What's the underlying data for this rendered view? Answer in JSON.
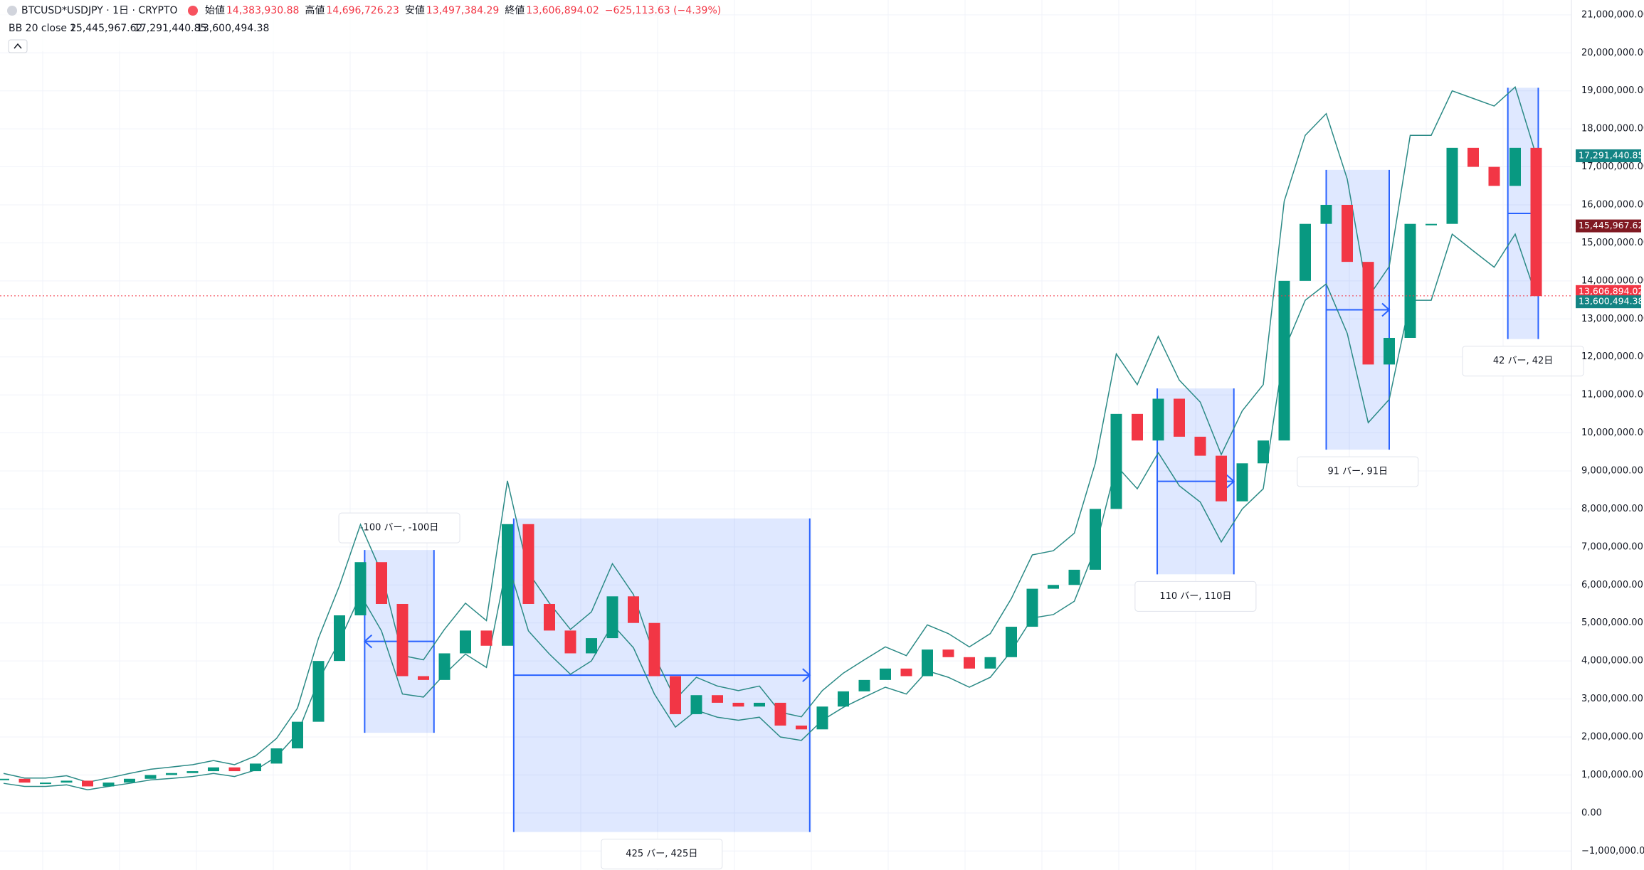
{
  "chart_data": {
    "type": "candlestick",
    "title": "BTCUSD*USDJPY · 1日 · CRYPTO",
    "ohlc_header": [
      {
        "name": "始値",
        "label": "14,383,930.88"
      },
      {
        "name": "高値",
        "label": "14,696,726.23"
      },
      {
        "name": "安値",
        "label": "13,497,384.29"
      },
      {
        "name": "終値",
        "label": "13,606,894.02"
      }
    ],
    "change": "−625,113.63 (−4.39%)",
    "close": {
      "value": 13606894.02,
      "label": "13,606,894.02",
      "color": "#f23645"
    },
    "indicator": {
      "name": "BB 20 close 2",
      "basis": {
        "value": 15445967.62,
        "label": "15,445,967.62",
        "color": "#801922"
      },
      "upper": {
        "value": 17291440.85,
        "label": "17,291,440.85",
        "color": "#138484"
      },
      "lower": {
        "value": 13600494.38,
        "label": "13,600,494.38",
        "color": "#138484"
      }
    },
    "series": [
      {
        "name": "close",
        "up_color": "#089981",
        "down_color": "#f23645",
        "values": [
          900000,
          800000,
          800000,
          850000,
          700000,
          800000,
          900000,
          1000000,
          1050000,
          1100000,
          1200000,
          1100000,
          1300000,
          1700000,
          2400000,
          4000000,
          5200000,
          6600000,
          5500000,
          3600000,
          3500000,
          4200000,
          4800000,
          4400000,
          7600000,
          5500000,
          4800000,
          4200000,
          4600000,
          5700000,
          5000000,
          3600000,
          2600000,
          3100000,
          2900000,
          2800000,
          2900000,
          2300000,
          2200000,
          2800000,
          3200000,
          3500000,
          3800000,
          3600000,
          4300000,
          4100000,
          3800000,
          4100000,
          4900000,
          5900000,
          6000000,
          6400000,
          8000000,
          10500000,
          9800000,
          10900000,
          9900000,
          9400000,
          8200000,
          9200000,
          9800000,
          14000000,
          15500000,
          16000000,
          14500000,
          11800000,
          12500000,
          15500000,
          15500000,
          17500000,
          17000000,
          16500000,
          17500000,
          13600000
        ]
      },
      {
        "name": "upper",
        "color": "#2b8a86",
        "values": [
          1040000,
          920000,
          920000,
          980000,
          810000,
          920000,
          1040000,
          1150000,
          1210000,
          1270000,
          1380000,
          1270000,
          1500000,
          1960000,
          2760000,
          4600000,
          5980000,
          7590000,
          6330000,
          4140000,
          4030000,
          4830000,
          5520000,
          5060000,
          8740000,
          6330000,
          5520000,
          4830000,
          5290000,
          6560000,
          5750000,
          4140000,
          2990000,
          3570000,
          3340000,
          3220000,
          3340000,
          2650000,
          2530000,
          3220000,
          3680000,
          4030000,
          4370000,
          4140000,
          4950000,
          4720000,
          4370000,
          4720000,
          5640000,
          6790000,
          6900000,
          7360000,
          9200000,
          12080000,
          11270000,
          12540000,
          11390000,
          10810000,
          9430000,
          10580000,
          11270000,
          16100000,
          17830000,
          18400000,
          16680000,
          13570000,
          14380000,
          17830000,
          17830000,
          19000000,
          18800000,
          18600000,
          19100000,
          17300000
        ]
      },
      {
        "name": "lower",
        "color": "#2b8a86",
        "values": [
          780000,
          700000,
          700000,
          740000,
          610000,
          700000,
          780000,
          870000,
          910000,
          960000,
          1040000,
          960000,
          1130000,
          1480000,
          2090000,
          3480000,
          4520000,
          5740000,
          4790000,
          3130000,
          3050000,
          3650000,
          4180000,
          3830000,
          6610000,
          4790000,
          4180000,
          3650000,
          4000000,
          4960000,
          4350000,
          3130000,
          2260000,
          2700000,
          2520000,
          2440000,
          2520000,
          2000000,
          1910000,
          2440000,
          2780000,
          3050000,
          3310000,
          3130000,
          3740000,
          3570000,
          3310000,
          3570000,
          4260000,
          5130000,
          5220000,
          5570000,
          6960000,
          9140000,
          8530000,
          9480000,
          8610000,
          8180000,
          7130000,
          8000000,
          8530000,
          12180000,
          13490000,
          13920000,
          12620000,
          10270000,
          10880000,
          13490000,
          13490000,
          15230000,
          14790000,
          14360000,
          15230000,
          13600000
        ]
      }
    ],
    "ranges": [
      {
        "label": "-100 バー, -100日",
        "start": 20.5,
        "end": 17.2,
        "low": 2110000,
        "high": 6920000
      },
      {
        "label": "425 バー, 425日",
        "start": 24.3,
        "end": 38.4,
        "low": -500000,
        "high": 7750000
      },
      {
        "label": "110 バー, 110日",
        "start": 54.95,
        "end": 58.6,
        "low": 6280000,
        "high": 11170000
      },
      {
        "label": "91 バー, 91日",
        "start": 63,
        "end": 66,
        "low": 9560000,
        "high": 16920000
      },
      {
        "label": "42 バー, 42日",
        "start": 71.65,
        "end": 73.1,
        "low": 12470000,
        "high": 19080000
      }
    ],
    "range_color": "#2962ff",
    "ylim": [
      -1500000,
      21390000
    ],
    "yticks": [
      {
        "value": -1000000,
        "label": "−1,000,000.00"
      },
      {
        "value": 0,
        "label": "0.00"
      },
      {
        "value": 1000000,
        "label": "1,000,000.00"
      },
      {
        "value": 2000000,
        "label": "2,000,000.00"
      },
      {
        "value": 3000000,
        "label": "3,000,000.00"
      },
      {
        "value": 4000000,
        "label": "4,000,000.00"
      },
      {
        "value": 5000000,
        "label": "5,000,000.00"
      },
      {
        "value": 6000000,
        "label": "6,000,000.00"
      },
      {
        "value": 7000000,
        "label": "7,000,000.00"
      },
      {
        "value": 8000000,
        "label": "8,000,000.00"
      },
      {
        "value": 9000000,
        "label": "9,000,000.00"
      },
      {
        "value": 10000000,
        "label": "10,000,000.00"
      },
      {
        "value": 11000000,
        "label": "11,000,000.00"
      },
      {
        "value": 12000000,
        "label": "12,000,000.00"
      },
      {
        "value": 13000000,
        "label": "13,000,000.00"
      },
      {
        "value": 14000000,
        "label": "14,000,000.00"
      },
      {
        "value": 15000000,
        "label": "15,000,000.00"
      },
      {
        "value": 16000000,
        "label": "16,000,000.00"
      },
      {
        "value": 17000000,
        "label": "17,000,000.00"
      },
      {
        "value": 18000000,
        "label": "18,000,000.00"
      },
      {
        "value": 19000000,
        "label": "19,000,000.00"
      },
      {
        "value": 20000000,
        "label": "20,000,000.00"
      },
      {
        "value": 21000000,
        "label": "21,000,000.00"
      }
    ],
    "grid": true
  }
}
